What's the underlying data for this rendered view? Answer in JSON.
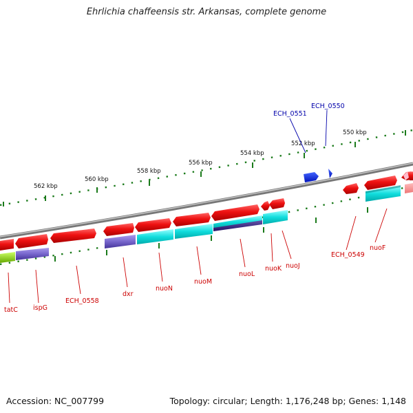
{
  "title": "Ehrlichia chaffeensis str. Arkansas, complete genome",
  "footer": {
    "accession": "Accession: NC_007799",
    "summary": "Topology: circular; Length: 1,176,248 bp; Genes: 1,148"
  },
  "scale_labels": [
    "562 kbp",
    "560 kbp",
    "558 kbp",
    "556 kbp",
    "554 kbp",
    "552 kbp",
    "550 kbp"
  ],
  "gene_labels_red": [
    "tatC",
    "ispG",
    "ECH_0558",
    "dxr",
    "nuoN",
    "nuoM",
    "nuoL",
    "nuoK",
    "nuoJ",
    "ECH_0549",
    "nuoF"
  ],
  "gene_labels_blue": [
    "ECH_0551",
    "ECH_0550"
  ],
  "colors": {
    "gene_red": "#ee1111",
    "cds_cyan": "#11dddd",
    "cds_purple": "#7766cc",
    "cds_green": "#99dd22",
    "rna_blue": "#1133ee",
    "label_red": "#cc0000",
    "label_blue": "#0000aa",
    "tick_green": "#1a7a1a",
    "backbone": "#888888"
  }
}
